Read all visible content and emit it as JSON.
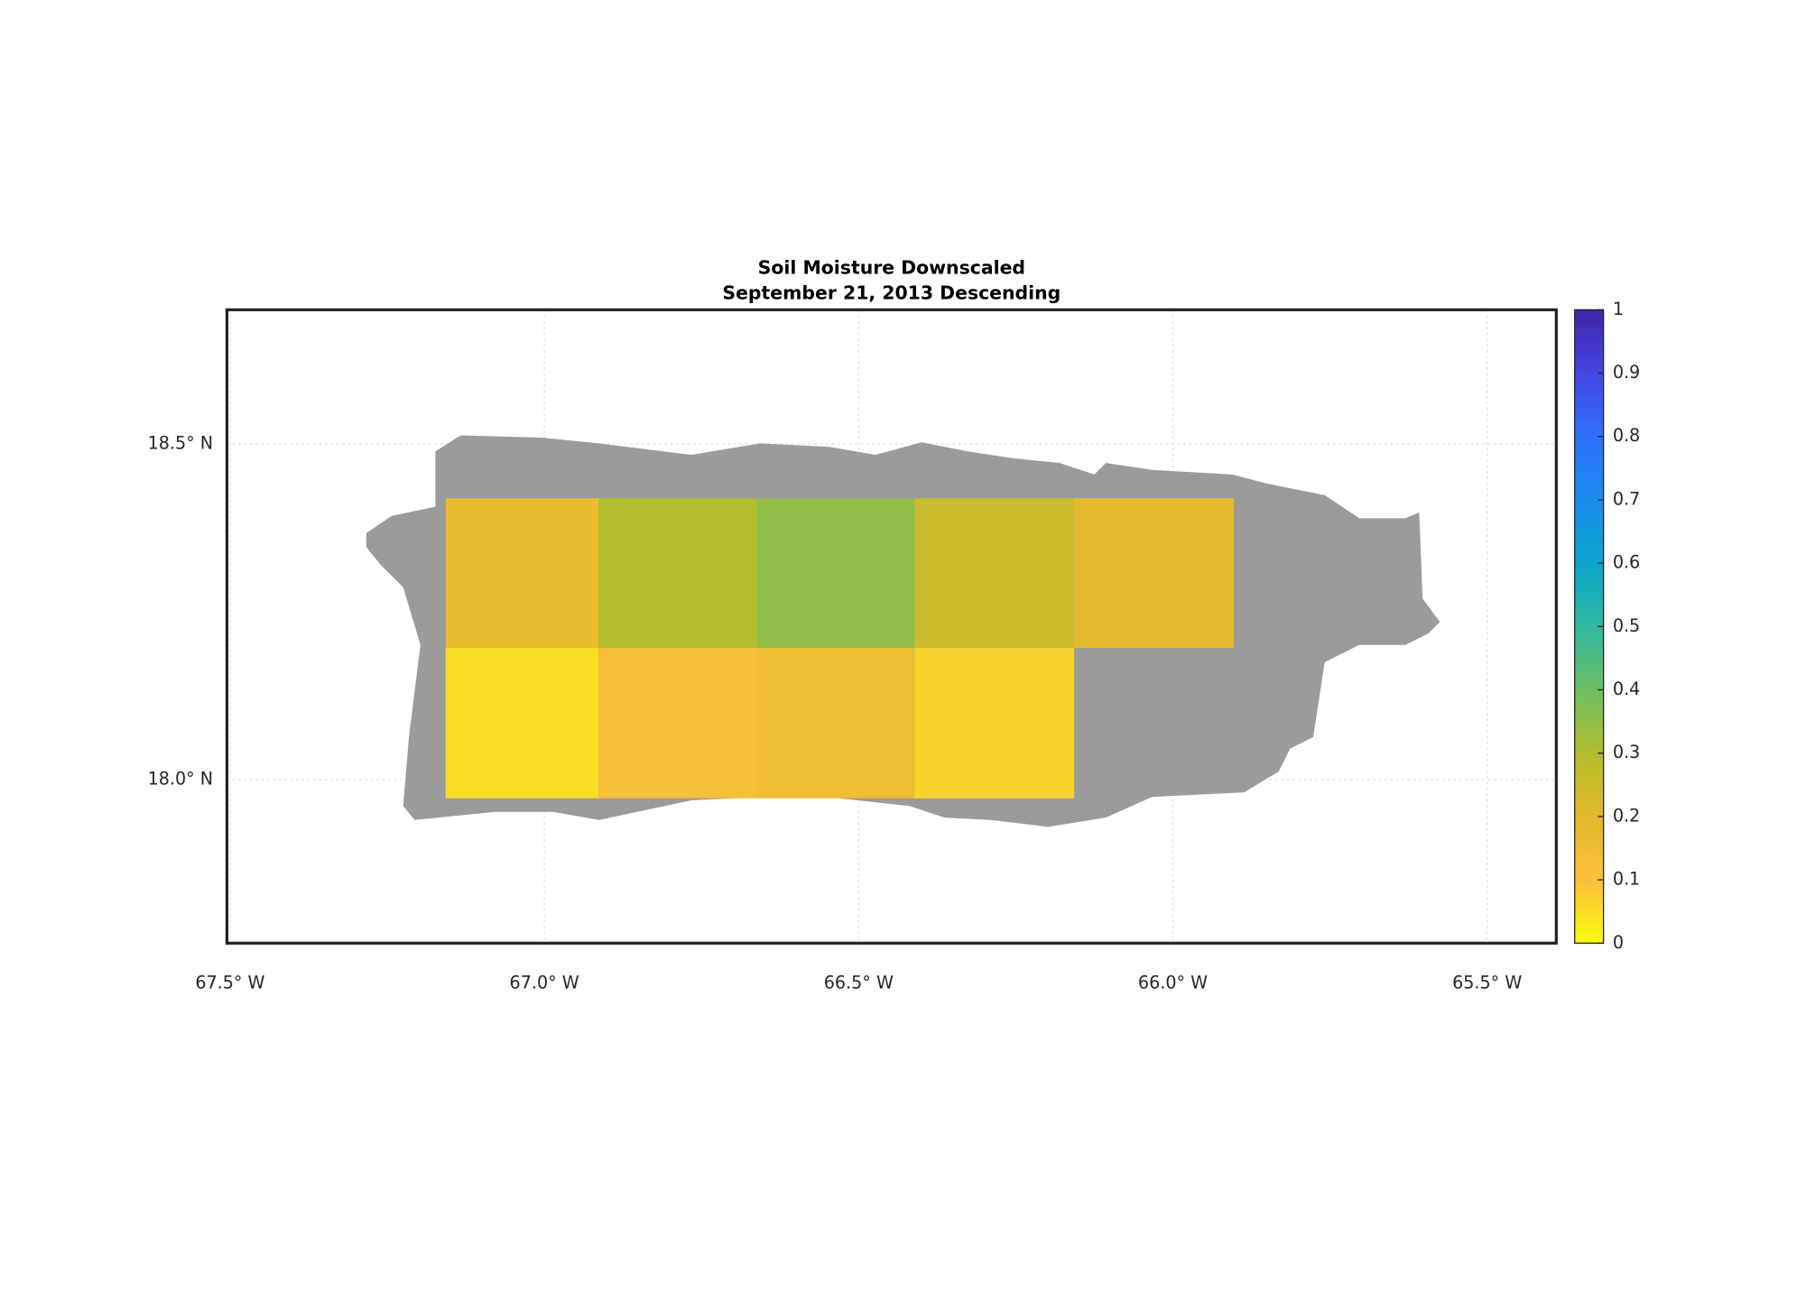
{
  "chart_data": {
    "type": "map",
    "title": "Soil Moisture Downscaled",
    "subtitle": "September 21, 2013 Descending",
    "xlim": [
      -67.505,
      -65.39
    ],
    "ylim": [
      17.756,
      18.7
    ],
    "xticks": [
      {
        "value": -67.5,
        "label": "67.5° W"
      },
      {
        "value": -67.0,
        "label": "67.0° W"
      },
      {
        "value": -66.5,
        "label": "66.5° W"
      },
      {
        "value": -66.0,
        "label": "66.0° W"
      },
      {
        "value": -65.5,
        "label": "65.5° W"
      }
    ],
    "yticks": [
      {
        "value": 18.0,
        "label": "18.0° N"
      },
      {
        "value": 18.5,
        "label": "18.5° N"
      }
    ],
    "grid": true,
    "clim": [
      0,
      1
    ],
    "cticks": [
      0,
      0.1,
      0.2,
      0.3,
      0.4,
      0.5,
      0.6,
      0.7,
      0.8,
      0.9,
      1
    ],
    "colormap": [
      "#f9fb0e",
      "#fbc03a",
      "#e1b92a",
      "#b4bd2f",
      "#6dbf64",
      "#2fb8a0",
      "#0ca6cc",
      "#1a8ced",
      "#2e6ffd",
      "#4545e3",
      "#3e26a8"
    ],
    "tiles": [
      {
        "lon": [
          -67.157,
          -66.914
        ],
        "lat": [
          18.196,
          18.419
        ],
        "value": 0.17
      },
      {
        "lon": [
          -66.914,
          -66.662
        ],
        "lat": [
          18.196,
          18.419
        ],
        "value": 0.3
      },
      {
        "lon": [
          -66.662,
          -66.411
        ],
        "lat": [
          18.196,
          18.419
        ],
        "value": 0.35
      },
      {
        "lon": [
          -66.411,
          -66.157
        ],
        "lat": [
          18.196,
          18.419
        ],
        "value": 0.25
      },
      {
        "lon": [
          -66.157,
          -65.903
        ],
        "lat": [
          18.196,
          18.419
        ],
        "value": 0.19
      },
      {
        "lon": [
          -67.157,
          -66.914
        ],
        "lat": [
          17.972,
          18.196
        ],
        "value": 0.05
      },
      {
        "lon": [
          -66.914,
          -66.662
        ],
        "lat": [
          17.972,
          18.196
        ],
        "value": 0.12
      },
      {
        "lon": [
          -66.662,
          -66.411
        ],
        "lat": [
          17.972,
          18.196
        ],
        "value": 0.15
      },
      {
        "lon": [
          -66.411,
          -66.157
        ],
        "lat": [
          17.972,
          18.196
        ],
        "value": 0.07
      }
    ]
  }
}
